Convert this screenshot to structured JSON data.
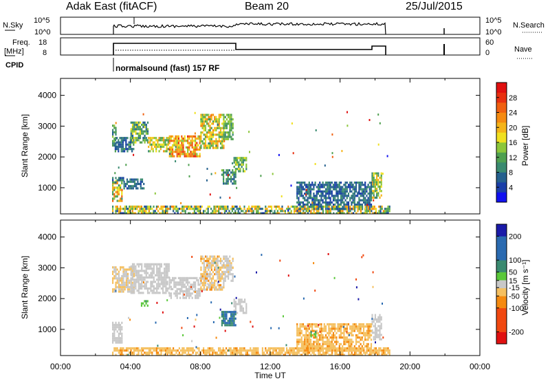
{
  "header": {
    "station": "Adak East (fitACF)",
    "beam": "Beam 20",
    "date": "25/Jul/2015"
  },
  "noise_panel": {
    "left_label": "N.Sky",
    "left_ticks": [
      "10^5",
      "10^0"
    ],
    "right_ticks": [
      "10^5",
      "10^0"
    ],
    "right_label": "N.Search"
  },
  "freq_panel": {
    "left_label_1": "Freq.",
    "left_label_2": "[MHz]",
    "left_ticks": [
      "18",
      "8"
    ],
    "right_ticks": [
      "60",
      "0"
    ],
    "right_label": "Nave"
  },
  "cpid": {
    "label": "CPID",
    "text": "normalsound (fast) 157 RF"
  },
  "colors": {
    "power_scale": [
      "#1010f0",
      "#1a3fa8",
      "#25608e",
      "#3a8a70",
      "#4fa050",
      "#8cc63a",
      "#f0e020",
      "#f5b418",
      "#f58a10",
      "#f06010",
      "#e83010",
      "#e01010"
    ],
    "velocity_scale": [
      "#e01010",
      "#f04810",
      "#f58a10",
      "#f5c060",
      "#c8c8c8",
      "#c8c8c8",
      "#5ac83a",
      "#3a8a70",
      "#2a6ab0",
      "#1a1aa8"
    ]
  },
  "chart_data": [
    {
      "type": "heatmap",
      "name": "power",
      "ylabel": "Slant Range [km]",
      "yticks": [
        "1000",
        "2000",
        "3000",
        "4000"
      ],
      "ylim": [
        150,
        4550
      ],
      "xlim": [
        0,
        24
      ],
      "colorbar": {
        "label": "Power [dB]",
        "ticks": [
          "4",
          "8",
          "12",
          "16",
          "20",
          "24",
          "28"
        ],
        "range": [
          0,
          32
        ]
      },
      "patches": [
        {
          "t0": 2.95,
          "t1": 3.55,
          "r0": 600,
          "r1": 1250,
          "v": [
            10,
            26
          ]
        },
        {
          "t0": 2.95,
          "t1": 3.15,
          "r0": 2400,
          "r1": 3050,
          "v": [
            6,
            14
          ]
        },
        {
          "t0": 3.1,
          "t1": 4.2,
          "r0": 2200,
          "r1": 2650,
          "v": [
            4,
            12
          ]
        },
        {
          "t0": 4.0,
          "t1": 5.0,
          "r0": 2500,
          "r1": 3150,
          "v": [
            6,
            18
          ]
        },
        {
          "t0": 5.0,
          "t1": 6.2,
          "r0": 2200,
          "r1": 2650,
          "v": [
            10,
            22
          ]
        },
        {
          "t0": 6.2,
          "t1": 8.0,
          "r0": 2000,
          "r1": 2700,
          "v": [
            14,
            28
          ]
        },
        {
          "t0": 8.0,
          "t1": 9.3,
          "r0": 2300,
          "r1": 3400,
          "v": [
            10,
            24
          ]
        },
        {
          "t0": 9.3,
          "t1": 9.9,
          "r0": 2600,
          "r1": 3400,
          "v": [
            8,
            16
          ]
        },
        {
          "t0": 9.9,
          "t1": 10.6,
          "r0": 1500,
          "r1": 2000,
          "v": [
            8,
            18
          ]
        },
        {
          "t0": 9.2,
          "t1": 10.0,
          "r0": 1100,
          "r1": 1600,
          "v": [
            6,
            14
          ]
        },
        {
          "t0": 2.95,
          "t1": 3.6,
          "r0": 1150,
          "r1": 1350,
          "v": [
            4,
            12
          ]
        },
        {
          "t0": 3.6,
          "t1": 4.8,
          "r0": 1000,
          "r1": 1300,
          "v": [
            4,
            10
          ]
        },
        {
          "t0": 17.8,
          "t1": 18.4,
          "r0": 650,
          "r1": 1500,
          "v": [
            8,
            22
          ]
        },
        {
          "t0": 13.5,
          "t1": 17.8,
          "r0": 300,
          "r1": 1200,
          "v": [
            4,
            10
          ]
        },
        {
          "t0": 2.95,
          "t1": 18.8,
          "r0": 180,
          "r1": 420,
          "v": [
            4,
            24
          ]
        }
      ]
    },
    {
      "type": "heatmap",
      "name": "velocity",
      "ylabel": "Slant Range [km]",
      "yticks": [
        "1000",
        "2000",
        "3000",
        "4000"
      ],
      "ylim": [
        150,
        4550
      ],
      "xlim": [
        0,
        24
      ],
      "xticks": [
        "00:00",
        "04:00",
        "08:00",
        "12:00",
        "16:00",
        "20:00",
        "00:00"
      ],
      "xlabel": "Time UT",
      "colorbar": {
        "label": "Velocity [m s⁻¹]",
        "ticks": [
          "-200",
          "-100",
          "-50",
          "-15",
          "15",
          "50",
          "100",
          "200"
        ],
        "range": [
          -250,
          250
        ]
      },
      "patches": [
        {
          "t0": 2.95,
          "t1": 3.55,
          "r0": 600,
          "r1": 1250,
          "v": [
            -12,
            12
          ]
        },
        {
          "t0": 2.95,
          "t1": 4.2,
          "r0": 2200,
          "r1": 3050,
          "v": [
            -40,
            12
          ]
        },
        {
          "t0": 4.0,
          "t1": 6.2,
          "r0": 2200,
          "r1": 3150,
          "v": [
            -12,
            12
          ]
        },
        {
          "t0": 6.2,
          "t1": 8.0,
          "r0": 2000,
          "r1": 2700,
          "v": [
            -12,
            12
          ]
        },
        {
          "t0": 8.0,
          "t1": 9.3,
          "r0": 2300,
          "r1": 3400,
          "v": [
            -60,
            12
          ]
        },
        {
          "t0": 9.3,
          "t1": 9.9,
          "r0": 2600,
          "r1": 3400,
          "v": [
            -20,
            12
          ]
        },
        {
          "t0": 9.9,
          "t1": 10.6,
          "r0": 1500,
          "r1": 2000,
          "v": [
            -12,
            12
          ]
        },
        {
          "t0": 9.2,
          "t1": 10.0,
          "r0": 1100,
          "r1": 1600,
          "v": [
            60,
            140
          ]
        },
        {
          "t0": 4.6,
          "t1": 5.0,
          "r0": 1750,
          "r1": 1950,
          "v": [
            20,
            60
          ]
        },
        {
          "t0": 17.8,
          "t1": 18.4,
          "r0": 650,
          "r1": 1500,
          "v": [
            -15,
            15
          ]
        },
        {
          "t0": 13.5,
          "t1": 17.8,
          "r0": 300,
          "r1": 1200,
          "v": [
            -60,
            -15
          ]
        },
        {
          "t0": 2.95,
          "t1": 18.8,
          "r0": 180,
          "r1": 420,
          "v": [
            -60,
            -15
          ]
        },
        {
          "t0": 14.3,
          "t1": 14.6,
          "r0": 800,
          "r1": 950,
          "v": [
            20,
            60
          ]
        }
      ]
    }
  ]
}
